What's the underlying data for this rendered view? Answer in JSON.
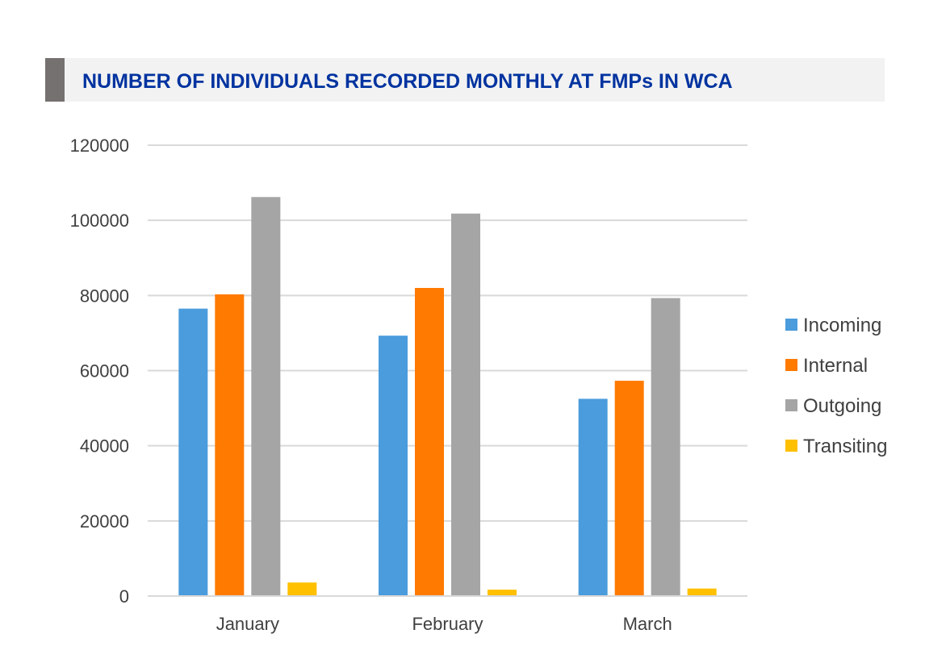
{
  "chart_data": {
    "type": "bar",
    "title": "NUMBER OF INDIVIDUALS RECORDED MONTHLY AT FMPs IN WCA",
    "categories": [
      "January",
      "February",
      "March"
    ],
    "series": [
      {
        "name": "Incoming",
        "values": [
          76500,
          69300,
          52500
        ],
        "color": "#4a9cdc"
      },
      {
        "name": "Internal",
        "values": [
          80300,
          82000,
          57300
        ],
        "color": "#ff7a00"
      },
      {
        "name": "Outgoing",
        "values": [
          106200,
          101800,
          79300
        ],
        "color": "#a5a5a5"
      },
      {
        "name": "Transiting",
        "values": [
          3600,
          1700,
          2000
        ],
        "color": "#ffc000"
      }
    ],
    "yticks": [
      "0",
      "20000",
      "40000",
      "60000",
      "80000",
      "100000",
      "120000"
    ],
    "ylim": [
      0,
      120000
    ],
    "grid": true,
    "legend_position": "right"
  }
}
